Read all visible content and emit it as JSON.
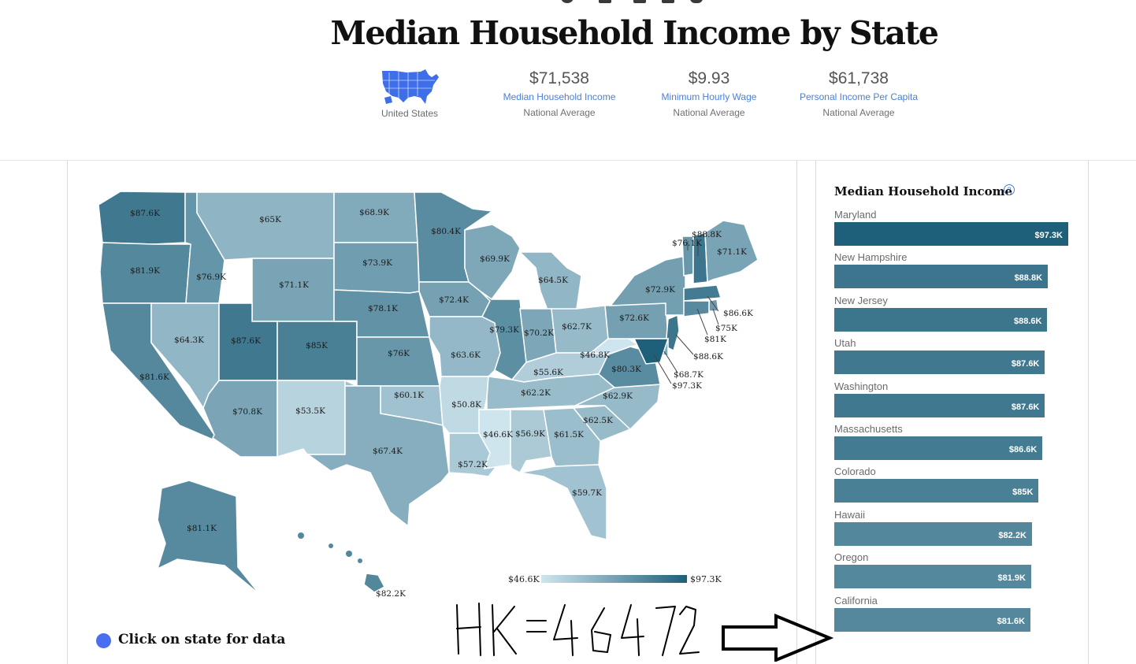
{
  "title": "Median Household Income by State",
  "share_icons": [
    "facebook-icon",
    "twitter-icon",
    "email-icon",
    "linkedin-icon",
    "copy-link-icon"
  ],
  "summary": {
    "region_label": "United States",
    "stats": [
      {
        "value": "$71,538",
        "label": "Median Household Income",
        "sub": "National Average"
      },
      {
        "value": "$9.93",
        "label": "Minimum Hourly Wage",
        "sub": "National Average"
      },
      {
        "value": "$61,738",
        "label": "Personal Income Per Capita",
        "sub": "National Average"
      }
    ]
  },
  "map": {
    "state_values": {
      "WA": "$87.6K",
      "OR": "$81.9K",
      "CA": "$81.6K",
      "ID": "$76.9K",
      "NV": "$64.3K",
      "MT": "$65K",
      "WY": "$71.1K",
      "UT": "$87.6K",
      "AZ": "$70.8K",
      "CO": "$85K",
      "NM": "$53.5K",
      "ND": "$68.9K",
      "SD": "$73.9K",
      "NE": "$78.1K",
      "KS": "$76K",
      "OK": "$60.1K",
      "TX": "$67.4K",
      "MN": "$80.4K",
      "IA": "$72.4K",
      "MO": "$63.6K",
      "AR": "$50.8K",
      "LA": "$57.2K",
      "WI": "$69.9K",
      "IL": "$79.3K",
      "MI": "$64.5K",
      "IN": "$70.2K",
      "OH": "$62.7K",
      "KY": "$55.6K",
      "TN": "$62.2K",
      "MS": "$46.6K",
      "AL": "$56.9K",
      "GA": "$61.5K",
      "FL": "$59.7K",
      "SC": "$62.5K",
      "NC": "$62.9K",
      "VA": "$80.3K",
      "WV": "$46.8K",
      "PA": "$72.6K",
      "NY": "$72.9K",
      "VT": "$76.1K",
      "NH": "$88.8K",
      "ME": "$71.1K",
      "MA": "$86.6K",
      "RI": "$75K",
      "CT": "$81K",
      "NJ": "$88.6K",
      "DE": "$68.7K",
      "MD": "$97.3K",
      "AK": "$81.1K",
      "HI": "$82.2K"
    },
    "legend": {
      "min": "$46.6K",
      "max": "$97.3K",
      "min_color": "#cfe5ee",
      "max_color": "#1e5f79"
    },
    "hint": "Click on state for data",
    "hint_dot_color": "#4a6ef0"
  },
  "sidebar": {
    "title": "Median Household Income",
    "help_icon": "question-circle-icon",
    "items": [
      {
        "state": "Maryland",
        "value": "$97.3K"
      },
      {
        "state": "New Hampshire",
        "value": "$88.8K"
      },
      {
        "state": "New Jersey",
        "value": "$88.6K"
      },
      {
        "state": "Utah",
        "value": "$87.6K"
      },
      {
        "state": "Washington",
        "value": "$87.6K"
      },
      {
        "state": "Massachusetts",
        "value": "$86.6K"
      },
      {
        "state": "Colorado",
        "value": "$85K"
      },
      {
        "state": "Hawaii",
        "value": "$82.2K"
      },
      {
        "state": "Oregon",
        "value": "$81.9K"
      },
      {
        "state": "California",
        "value": "$81.6K"
      }
    ]
  },
  "chart_data": {
    "type": "bar",
    "title": "Median Household Income",
    "categories": [
      "Maryland",
      "New Hampshire",
      "New Jersey",
      "Utah",
      "Washington",
      "Massachusetts",
      "Colorado",
      "Hawaii",
      "Oregon",
      "California"
    ],
    "values": [
      97.3,
      88.8,
      88.6,
      87.6,
      87.6,
      86.6,
      85,
      82.2,
      81.9,
      81.6
    ]
  },
  "annotation": {
    "handwritten_text": "HK=4672"
  }
}
